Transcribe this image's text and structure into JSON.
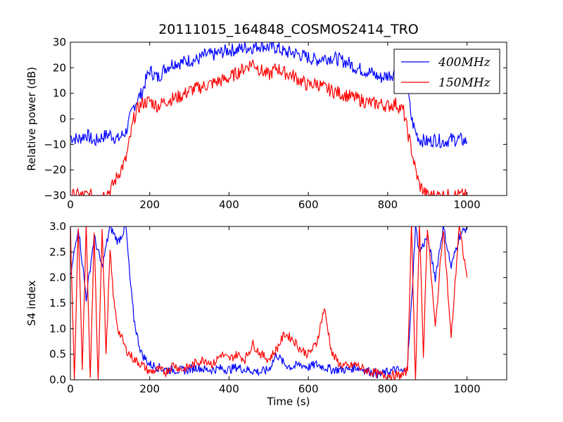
{
  "chart_data": [
    {
      "type": "line",
      "title": "20111015_164848_COSMOS2414_TRO",
      "xlabel": "",
      "ylabel": "Relative power (dB)",
      "xlim": [
        0,
        1100
      ],
      "ylim": [
        -30,
        30
      ],
      "xticks": [
        0,
        200,
        400,
        600,
        800,
        1000
      ],
      "yticks": [
        -30,
        -20,
        -10,
        0,
        10,
        20,
        30
      ],
      "yticklabels": [
        "−30",
        "−20",
        "−10",
        "0",
        "10",
        "20",
        "30"
      ],
      "grid": false,
      "legend": "top-right",
      "series": [
        {
          "name": "400MHz",
          "color": "#0000ff",
          "x": [
            0,
            20,
            40,
            60,
            80,
            100,
            120,
            140,
            150,
            160,
            170,
            180,
            190,
            200,
            220,
            240,
            260,
            280,
            300,
            320,
            340,
            360,
            380,
            400,
            420,
            440,
            460,
            480,
            500,
            520,
            540,
            560,
            580,
            600,
            620,
            640,
            660,
            680,
            700,
            720,
            740,
            760,
            780,
            800,
            820,
            840,
            850,
            860,
            870,
            880,
            900,
            920,
            940,
            960,
            980,
            1000
          ],
          "y": [
            -7,
            -8,
            -6,
            -9,
            -7,
            -6,
            -8,
            -5,
            0,
            5,
            8,
            10,
            15,
            19,
            16,
            20,
            22,
            22,
            23,
            23,
            25,
            25,
            26,
            27,
            27,
            28,
            28,
            29,
            28,
            28,
            26,
            26,
            25,
            24,
            23,
            24,
            24,
            23,
            22,
            20,
            19,
            18,
            16,
            17,
            18,
            19,
            12,
            0,
            -5,
            -8,
            -9,
            -8,
            -9,
            -8,
            -8,
            -9
          ]
        },
        {
          "name": "150MHz",
          "color": "#ff0000",
          "x": [
            0,
            40,
            80,
            100,
            120,
            140,
            150,
            160,
            170,
            180,
            200,
            220,
            240,
            260,
            280,
            300,
            320,
            340,
            360,
            380,
            400,
            420,
            440,
            460,
            480,
            500,
            520,
            540,
            560,
            580,
            600,
            620,
            640,
            660,
            680,
            700,
            720,
            740,
            760,
            780,
            800,
            820,
            840,
            850,
            860,
            870,
            880,
            900,
            920,
            940,
            960,
            980,
            1000
          ],
          "y": [
            -30,
            -30,
            -30,
            -28,
            -22,
            -16,
            -8,
            0,
            4,
            6,
            7,
            5,
            7,
            8,
            9,
            11,
            12,
            13,
            14,
            15,
            16,
            18,
            20,
            22,
            19,
            17,
            20,
            18,
            17,
            15,
            13,
            14,
            12,
            11,
            10,
            9,
            8,
            7,
            6,
            6,
            5,
            6,
            3,
            -5,
            -12,
            -20,
            -26,
            -30,
            -30,
            -30,
            -30,
            -30,
            -30
          ]
        }
      ]
    },
    {
      "type": "line",
      "title": "",
      "xlabel": "Time (s)",
      "ylabel": "S4 index",
      "xlim": [
        0,
        1100
      ],
      "ylim": [
        0,
        3
      ],
      "xticks": [
        0,
        200,
        400,
        600,
        800,
        1000
      ],
      "yticks": [
        0,
        0.5,
        1,
        1.5,
        2,
        2.5,
        3
      ],
      "yticklabels": [
        "0.0",
        "0.5",
        "1.0",
        "1.5",
        "2.0",
        "2.5",
        "3.0"
      ],
      "grid": false,
      "series": [
        {
          "name": "400MHz",
          "color": "#0000ff",
          "x": [
            0,
            20,
            40,
            60,
            80,
            100,
            120,
            140,
            150,
            160,
            170,
            180,
            200,
            220,
            240,
            260,
            280,
            300,
            320,
            340,
            360,
            380,
            400,
            420,
            440,
            460,
            480,
            500,
            520,
            540,
            560,
            580,
            600,
            620,
            640,
            660,
            680,
            700,
            720,
            740,
            760,
            780,
            800,
            820,
            840,
            850,
            860,
            870,
            880,
            900,
            920,
            940,
            960,
            980,
            1000
          ],
          "y": [
            2.0,
            3.0,
            1.6,
            2.8,
            2.2,
            3.0,
            2.7,
            3.0,
            2.0,
            1.2,
            0.8,
            0.5,
            0.3,
            0.25,
            0.2,
            0.2,
            0.18,
            0.2,
            0.25,
            0.2,
            0.2,
            0.22,
            0.2,
            0.25,
            0.2,
            0.18,
            0.15,
            0.2,
            0.5,
            0.3,
            0.25,
            0.3,
            0.25,
            0.3,
            0.25,
            0.2,
            0.2,
            0.2,
            0.25,
            0.2,
            0.15,
            0.1,
            0.15,
            0.2,
            0.15,
            0.3,
            1.5,
            3.0,
            2.5,
            2.8,
            2.0,
            3.0,
            2.2,
            2.8,
            3.0
          ]
        },
        {
          "name": "150MHz",
          "color": "#ff0000",
          "x": [
            0,
            10,
            20,
            30,
            40,
            50,
            60,
            70,
            80,
            90,
            100,
            110,
            120,
            140,
            160,
            180,
            200,
            220,
            240,
            260,
            280,
            300,
            320,
            340,
            360,
            380,
            400,
            420,
            440,
            460,
            480,
            500,
            520,
            540,
            560,
            580,
            600,
            620,
            640,
            660,
            680,
            700,
            720,
            740,
            760,
            780,
            800,
            820,
            840,
            850,
            860,
            870,
            880,
            890,
            900,
            920,
            940,
            960,
            980,
            1000
          ],
          "y": [
            3.0,
            0.0,
            3.0,
            0.2,
            3.0,
            0.0,
            2.8,
            0.0,
            3.0,
            0.5,
            2.5,
            1.5,
            1.0,
            0.6,
            0.4,
            0.3,
            0.15,
            0.2,
            0.15,
            0.3,
            0.2,
            0.25,
            0.35,
            0.4,
            0.3,
            0.5,
            0.4,
            0.5,
            0.4,
            0.7,
            0.5,
            0.4,
            0.6,
            0.9,
            0.8,
            0.6,
            0.5,
            0.7,
            1.4,
            0.5,
            0.3,
            0.25,
            0.3,
            0.2,
            0.15,
            0.1,
            0.1,
            0.08,
            0.1,
            0.2,
            3.0,
            0.0,
            3.0,
            0.5,
            3.0,
            1.0,
            3.0,
            0.8,
            3.0,
            2.0
          ]
        }
      ]
    }
  ]
}
